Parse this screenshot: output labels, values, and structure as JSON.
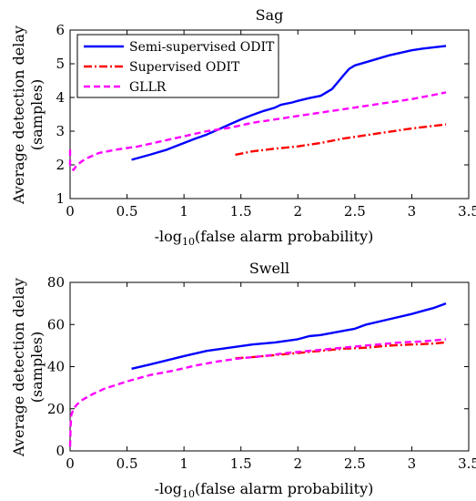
{
  "chart_data": [
    {
      "type": "line",
      "title": "Sag",
      "xlabel_prefix": "-log",
      "xlabel_sub": "10",
      "xlabel_suffix": "(false alarm probability)",
      "ylabel_line1": "Average detection delay",
      "ylabel_line2": "(samples)",
      "xlim": [
        0,
        3.5
      ],
      "ylim": [
        1,
        6
      ],
      "xticks": [
        "0",
        "0.5",
        "1",
        "1.5",
        "2",
        "2.5",
        "3",
        "3.5"
      ],
      "xtick_values": [
        0,
        0.5,
        1,
        1.5,
        2,
        2.5,
        3,
        3.5
      ],
      "yticks": [
        "1",
        "2",
        "3",
        "4",
        "5",
        "6"
      ],
      "ytick_values": [
        1,
        2,
        3,
        4,
        5,
        6
      ],
      "grid": false,
      "legend_position": "top-left",
      "series": [
        {
          "name": "Semi-supervised ODIT",
          "color": "#0000ff",
          "style": "solid",
          "x": [
            0.54,
            0.7,
            0.85,
            1.0,
            1.1,
            1.2,
            1.3,
            1.4,
            1.5,
            1.6,
            1.7,
            1.8,
            1.85,
            1.95,
            2.0,
            2.1,
            2.2,
            2.3,
            2.4,
            2.45,
            2.5,
            2.6,
            2.8,
            3.0,
            3.1,
            3.3
          ],
          "y": [
            2.15,
            2.3,
            2.45,
            2.65,
            2.78,
            2.9,
            3.05,
            3.2,
            3.35,
            3.48,
            3.6,
            3.7,
            3.78,
            3.85,
            3.9,
            3.98,
            4.05,
            4.25,
            4.65,
            4.85,
            4.95,
            5.05,
            5.25,
            5.4,
            5.45,
            5.53
          ]
        },
        {
          "name": "Supervised ODIT",
          "color": "#ff0000",
          "style": "dashdot",
          "x": [
            1.45,
            1.6,
            1.8,
            2.0,
            2.2,
            2.4,
            2.6,
            2.8,
            3.0,
            3.2,
            3.3
          ],
          "y": [
            2.3,
            2.4,
            2.48,
            2.55,
            2.65,
            2.78,
            2.88,
            2.98,
            3.08,
            3.16,
            3.2
          ]
        },
        {
          "name": "GLLR",
          "color": "#ff00ff",
          "style": "dashed",
          "x": [
            0.0,
            0.0,
            0.01,
            0.03,
            0.05,
            0.1,
            0.15,
            0.25,
            0.4,
            0.6,
            0.8,
            1.0,
            1.2,
            1.4,
            1.6,
            1.8,
            2.0,
            2.2,
            2.4,
            2.6,
            2.8,
            3.0,
            3.2,
            3.3
          ],
          "y": [
            2.45,
            2.0,
            1.9,
            1.85,
            1.95,
            2.1,
            2.2,
            2.35,
            2.45,
            2.55,
            2.7,
            2.85,
            3.0,
            3.1,
            3.25,
            3.35,
            3.45,
            3.55,
            3.65,
            3.75,
            3.85,
            3.95,
            4.08,
            4.15
          ]
        }
      ]
    },
    {
      "type": "line",
      "title": "Swell",
      "xlabel_prefix": "-log",
      "xlabel_sub": "10",
      "xlabel_suffix": "(false alarm probability)",
      "ylabel_line1": "Average detection delay",
      "ylabel_line2": "(samples)",
      "xlim": [
        0,
        3.5
      ],
      "ylim": [
        0,
        80
      ],
      "xticks": [
        "0",
        "0.5",
        "1",
        "1.5",
        "2",
        "2.5",
        "3",
        "3.5"
      ],
      "xtick_values": [
        0,
        0.5,
        1,
        1.5,
        2,
        2.5,
        3,
        3.5
      ],
      "yticks": [
        "0",
        "20",
        "40",
        "60",
        "80"
      ],
      "ytick_values": [
        0,
        20,
        40,
        60,
        80
      ],
      "grid": false,
      "series": [
        {
          "name": "Semi-supervised ODIT",
          "color": "#0000ff",
          "style": "solid",
          "x": [
            0.54,
            0.7,
            0.85,
            1.0,
            1.2,
            1.4,
            1.6,
            1.8,
            2.0,
            2.1,
            2.2,
            2.4,
            2.5,
            2.6,
            2.8,
            3.0,
            3.1,
            3.2,
            3.3
          ],
          "y": [
            39,
            41,
            43,
            45,
            47.5,
            49,
            50.5,
            51.5,
            53,
            54.5,
            55,
            57,
            58,
            60,
            62.5,
            65,
            66.5,
            68,
            70
          ]
        },
        {
          "name": "Supervised ODIT",
          "color": "#ff0000",
          "style": "dashdot",
          "x": [
            1.45,
            1.6,
            1.8,
            2.0,
            2.2,
            2.4,
            2.6,
            2.8,
            3.0,
            3.2,
            3.3
          ],
          "y": [
            44,
            44.5,
            45.5,
            46.5,
            47.5,
            48.5,
            49,
            50,
            50.5,
            51,
            51.5
          ]
        },
        {
          "name": "GLLR",
          "color": "#ff00ff",
          "style": "dashed",
          "x": [
            0.0,
            0.005,
            0.01,
            0.03,
            0.06,
            0.1,
            0.2,
            0.3,
            0.5,
            0.7,
            0.9,
            1.1,
            1.3,
            1.5,
            1.7,
            1.9,
            2.1,
            2.3,
            2.5,
            2.7,
            2.9,
            3.1,
            3.3
          ],
          "y": [
            2,
            12,
            17,
            20,
            22,
            24,
            27,
            29.5,
            33,
            36,
            38,
            40.5,
            42.5,
            44,
            45,
            46.5,
            47.5,
            48.5,
            49.5,
            50.5,
            51.5,
            52,
            53
          ]
        }
      ]
    }
  ]
}
